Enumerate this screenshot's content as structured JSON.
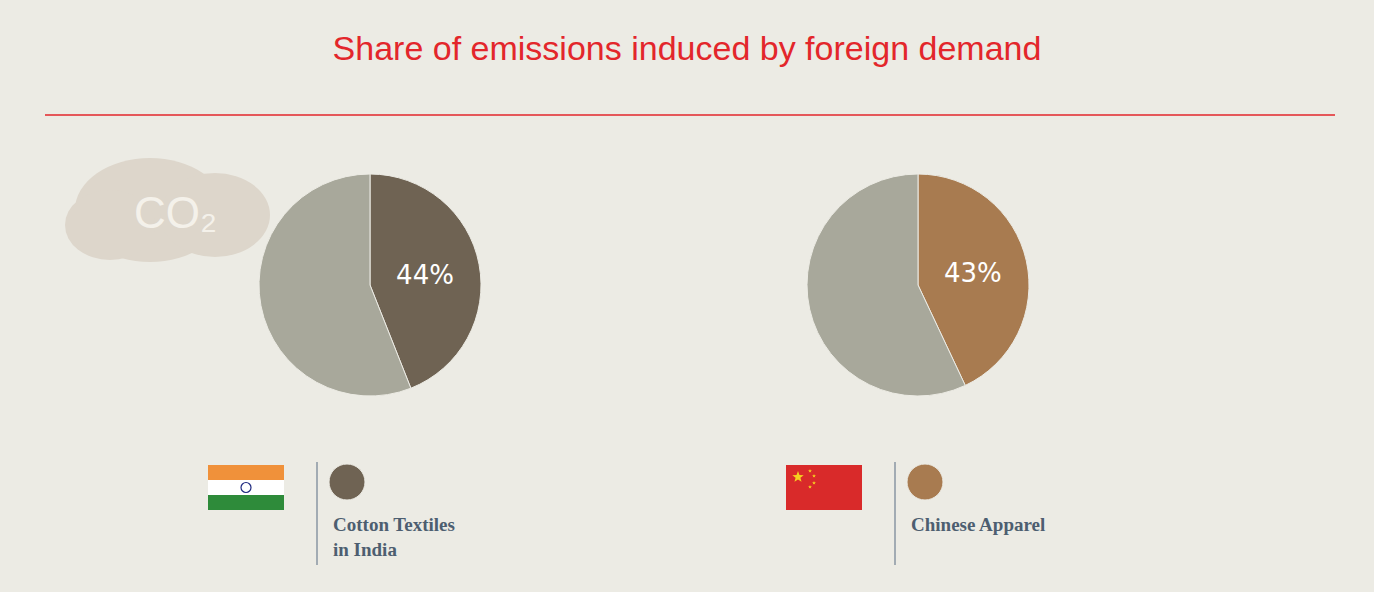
{
  "title": "Share of emissions induced by foreign demand",
  "annotations": [
    "CO₂"
  ],
  "chart_data": [
    {
      "type": "pie",
      "name": "Cotton Textiles in India",
      "values": [
        44,
        56
      ],
      "value_labels": [
        "44%",
        null
      ],
      "colors": [
        "#6f6353",
        "#a8a89b"
      ],
      "data_labels": true
    },
    {
      "type": "pie",
      "name": "Chinese Apparel",
      "values": [
        43,
        57
      ],
      "value_labels": [
        "43%",
        null
      ],
      "colors": [
        "#a87b50",
        "#a8a89b"
      ],
      "data_labels": true
    }
  ]
}
